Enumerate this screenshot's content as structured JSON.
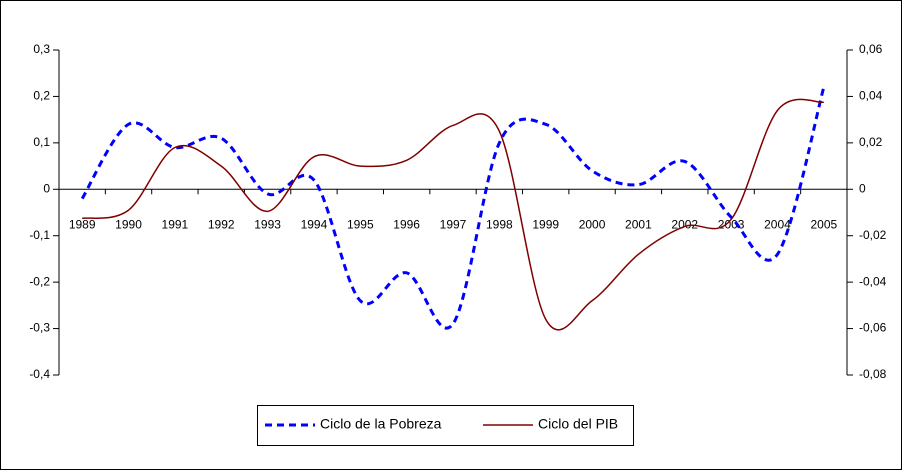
{
  "chart_data": {
    "type": "line",
    "categories": [
      "1989",
      "1990",
      "1991",
      "1992",
      "1993",
      "1994",
      "1995",
      "1996",
      "1997",
      "1998",
      "1999",
      "2000",
      "2001",
      "2002",
      "2003",
      "2004",
      "2005"
    ],
    "series": [
      {
        "name": "Ciclo de la Pobreza",
        "color": "#0000ff",
        "axis": "y",
        "values": [
          -0.02,
          0.14,
          0.09,
          0.11,
          -0.01,
          0.02,
          -0.24,
          -0.18,
          -0.29,
          0.1,
          0.14,
          0.04,
          0.01,
          0.06,
          -0.06,
          -0.14,
          0.22
        ]
      },
      {
        "name": "Ciclo del PIB",
        "color": "#800000",
        "axis": "y2",
        "values": [
          -0.0125,
          -0.009,
          0.018,
          0.01,
          -0.0095,
          0.014,
          0.01,
          0.0125,
          0.0275,
          0.025,
          -0.056,
          -0.048,
          -0.028,
          -0.016,
          -0.013,
          0.034,
          0.0375
        ]
      }
    ],
    "ylim": [
      -0.4,
      0.3
    ],
    "yticks": [
      {
        "value": -0.4,
        "label": "-0,4"
      },
      {
        "value": -0.3,
        "label": "-0,3"
      },
      {
        "value": -0.2,
        "label": "-0,2"
      },
      {
        "value": -0.1,
        "label": "-0,1"
      },
      0,
      {
        "value": 0.1,
        "label": "0,1"
      },
      {
        "value": 0.2,
        "label": "0,2"
      },
      {
        "value": 0.3,
        "label": "0,3"
      }
    ],
    "y2lim": [
      -0.08,
      0.06
    ],
    "y2ticks": [
      {
        "value": -0.08,
        "label": "-0,08"
      },
      {
        "value": -0.06,
        "label": "-0,06"
      },
      {
        "value": -0.04,
        "label": "-0,04"
      },
      {
        "value": -0.02,
        "label": "-0,02"
      },
      0,
      {
        "value": 0.02,
        "label": "0,02"
      },
      {
        "value": 0.04,
        "label": "0,04"
      },
      {
        "value": 0.06,
        "label": "0,06"
      }
    ],
    "legend": "bottom"
  }
}
